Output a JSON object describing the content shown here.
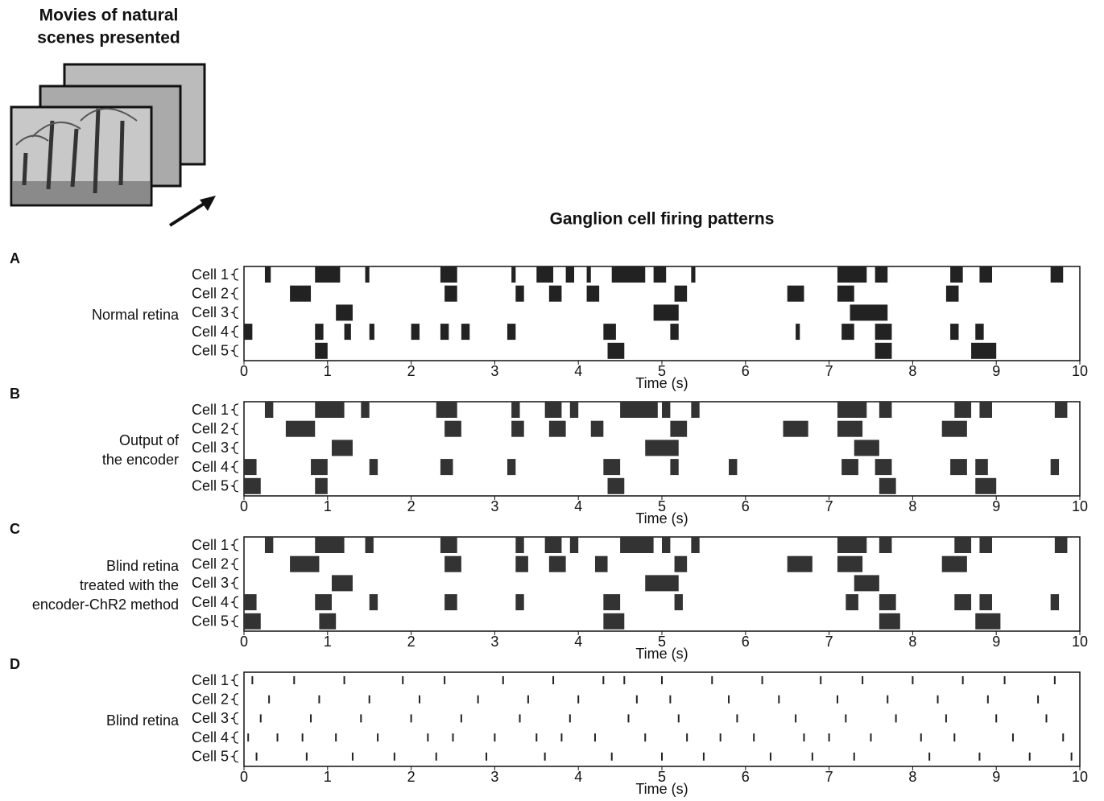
{
  "header": {
    "title_lines": [
      "Movies of natural",
      "scenes presented"
    ],
    "heading": "Ganglion cell firing patterns"
  },
  "chart_data": [
    {
      "type": "raster",
      "panel": "A",
      "label": [
        "Normal retina"
      ],
      "xlabel": "Time (s)",
      "xlim": [
        0,
        10
      ],
      "xticks": [
        0,
        1,
        2,
        3,
        4,
        5,
        6,
        7,
        8,
        9,
        10
      ],
      "color": "#222",
      "series": [
        {
          "name": "Cell 1",
          "bursts": [
            [
              0.25,
              0.32
            ],
            [
              0.85,
              1.15
            ],
            [
              1.45,
              1.5
            ],
            [
              2.35,
              2.55
            ],
            [
              3.2,
              3.25
            ],
            [
              3.5,
              3.7
            ],
            [
              3.85,
              3.95
            ],
            [
              4.1,
              4.15
            ],
            [
              4.4,
              4.8
            ],
            [
              4.9,
              5.05
            ],
            [
              5.35,
              5.4
            ],
            [
              7.1,
              7.45
            ],
            [
              7.55,
              7.7
            ],
            [
              8.45,
              8.6
            ],
            [
              8.8,
              8.95
            ],
            [
              9.65,
              9.8
            ]
          ]
        },
        {
          "name": "Cell 2",
          "bursts": [
            [
              0.55,
              0.8
            ],
            [
              2.4,
              2.55
            ],
            [
              3.25,
              3.35
            ],
            [
              3.65,
              3.8
            ],
            [
              4.1,
              4.25
            ],
            [
              5.15,
              5.3
            ],
            [
              6.5,
              6.7
            ],
            [
              7.1,
              7.3
            ],
            [
              8.4,
              8.55
            ]
          ]
        },
        {
          "name": "Cell 3",
          "bursts": [
            [
              1.1,
              1.3
            ],
            [
              4.9,
              5.2
            ],
            [
              7.25,
              7.7
            ]
          ]
        },
        {
          "name": "Cell 4",
          "bursts": [
            [
              0,
              0.1
            ],
            [
              0.85,
              0.95
            ],
            [
              1.2,
              1.28
            ],
            [
              1.5,
              1.56
            ],
            [
              2.0,
              2.1
            ],
            [
              2.35,
              2.45
            ],
            [
              2.6,
              2.7
            ],
            [
              3.15,
              3.25
            ],
            [
              4.3,
              4.45
            ],
            [
              5.1,
              5.2
            ],
            [
              6.6,
              6.65
            ],
            [
              7.15,
              7.3
            ],
            [
              7.55,
              7.75
            ],
            [
              8.45,
              8.55
            ],
            [
              8.75,
              8.85
            ]
          ]
        },
        {
          "name": "Cell 5",
          "bursts": [
            [
              0.85,
              1.0
            ],
            [
              4.35,
              4.55
            ],
            [
              7.55,
              7.75
            ],
            [
              8.7,
              9.0
            ]
          ]
        }
      ]
    },
    {
      "type": "raster",
      "panel": "B",
      "label": [
        "Output of",
        "the encoder"
      ],
      "xlabel": "Time (s)",
      "xlim": [
        0,
        10
      ],
      "xticks": [
        0,
        1,
        2,
        3,
        4,
        5,
        6,
        7,
        8,
        9,
        10
      ],
      "color": "#333",
      "series": [
        {
          "name": "Cell 1",
          "bursts": [
            [
              0.25,
              0.35
            ],
            [
              0.85,
              1.2
            ],
            [
              1.4,
              1.5
            ],
            [
              2.3,
              2.55
            ],
            [
              3.2,
              3.3
            ],
            [
              3.6,
              3.8
            ],
            [
              3.9,
              4.0
            ],
            [
              4.5,
              4.95
            ],
            [
              5.0,
              5.1
            ],
            [
              5.35,
              5.45
            ],
            [
              7.1,
              7.45
            ],
            [
              7.6,
              7.75
            ],
            [
              8.5,
              8.7
            ],
            [
              8.8,
              8.95
            ],
            [
              9.7,
              9.85
            ]
          ]
        },
        {
          "name": "Cell 2",
          "bursts": [
            [
              0.5,
              0.85
            ],
            [
              2.4,
              2.6
            ],
            [
              3.2,
              3.35
            ],
            [
              3.65,
              3.85
            ],
            [
              4.15,
              4.3
            ],
            [
              5.1,
              5.3
            ],
            [
              6.45,
              6.75
            ],
            [
              7.1,
              7.4
            ],
            [
              8.35,
              8.65
            ]
          ]
        },
        {
          "name": "Cell 3",
          "bursts": [
            [
              1.05,
              1.3
            ],
            [
              4.8,
              5.2
            ],
            [
              7.3,
              7.6
            ]
          ]
        },
        {
          "name": "Cell 4",
          "bursts": [
            [
              0,
              0.15
            ],
            [
              0.8,
              1.0
            ],
            [
              1.5,
              1.6
            ],
            [
              2.35,
              2.5
            ],
            [
              3.15,
              3.25
            ],
            [
              4.3,
              4.5
            ],
            [
              5.1,
              5.2
            ],
            [
              5.8,
              5.9
            ],
            [
              7.15,
              7.35
            ],
            [
              7.55,
              7.75
            ],
            [
              8.45,
              8.65
            ],
            [
              8.75,
              8.9
            ],
            [
              9.65,
              9.75
            ]
          ]
        },
        {
          "name": "Cell 5",
          "bursts": [
            [
              0,
              0.2
            ],
            [
              0.85,
              1.0
            ],
            [
              4.35,
              4.55
            ],
            [
              7.6,
              7.8
            ],
            [
              8.75,
              9.0
            ]
          ]
        }
      ]
    },
    {
      "type": "raster",
      "panel": "C",
      "label": [
        "Blind retina",
        "treated with the",
        "encoder-ChR2 method"
      ],
      "xlabel": "Time (s)",
      "xlim": [
        0,
        10
      ],
      "xticks": [
        0,
        1,
        2,
        3,
        4,
        5,
        6,
        7,
        8,
        9,
        10
      ],
      "color": "#333",
      "series": [
        {
          "name": "Cell 1",
          "bursts": [
            [
              0.25,
              0.35
            ],
            [
              0.85,
              1.2
            ],
            [
              1.45,
              1.55
            ],
            [
              2.35,
              2.55
            ],
            [
              3.25,
              3.35
            ],
            [
              3.6,
              3.8
            ],
            [
              3.9,
              4.0
            ],
            [
              4.5,
              4.9
            ],
            [
              5.0,
              5.1
            ],
            [
              5.35,
              5.45
            ],
            [
              7.1,
              7.45
            ],
            [
              7.6,
              7.75
            ],
            [
              8.5,
              8.7
            ],
            [
              8.8,
              8.95
            ],
            [
              9.7,
              9.85
            ]
          ]
        },
        {
          "name": "Cell 2",
          "bursts": [
            [
              0.55,
              0.9
            ],
            [
              2.4,
              2.6
            ],
            [
              3.25,
              3.4
            ],
            [
              3.65,
              3.85
            ],
            [
              4.2,
              4.35
            ],
            [
              5.15,
              5.3
            ],
            [
              6.5,
              6.8
            ],
            [
              7.1,
              7.4
            ],
            [
              8.35,
              8.65
            ]
          ]
        },
        {
          "name": "Cell 3",
          "bursts": [
            [
              1.05,
              1.3
            ],
            [
              4.8,
              5.2
            ],
            [
              7.3,
              7.6
            ]
          ]
        },
        {
          "name": "Cell 4",
          "bursts": [
            [
              0,
              0.15
            ],
            [
              0.85,
              1.05
            ],
            [
              1.5,
              1.6
            ],
            [
              2.4,
              2.55
            ],
            [
              3.25,
              3.35
            ],
            [
              4.3,
              4.5
            ],
            [
              5.15,
              5.25
            ],
            [
              7.2,
              7.35
            ],
            [
              7.6,
              7.8
            ],
            [
              8.5,
              8.7
            ],
            [
              8.8,
              8.95
            ],
            [
              9.65,
              9.75
            ]
          ]
        },
        {
          "name": "Cell 5",
          "bursts": [
            [
              0,
              0.2
            ],
            [
              0.9,
              1.1
            ],
            [
              4.3,
              4.55
            ],
            [
              7.6,
              7.85
            ],
            [
              8.75,
              9.05
            ]
          ]
        }
      ]
    },
    {
      "type": "spikes",
      "panel": "D",
      "label": [
        "Blind retina"
      ],
      "xlabel": "Time (s)",
      "xlim": [
        0,
        10
      ],
      "xticks": [
        0,
        1,
        2,
        3,
        4,
        5,
        6,
        7,
        8,
        9,
        10
      ],
      "color": "#222",
      "series": [
        {
          "name": "Cell 1",
          "spikes": [
            0.1,
            0.6,
            1.2,
            1.9,
            2.4,
            3.1,
            3.7,
            4.3,
            4.55,
            5.0,
            5.6,
            6.2,
            6.9,
            7.4,
            8.0,
            8.6,
            9.1,
            9.7
          ]
        },
        {
          "name": "Cell 2",
          "spikes": [
            0.3,
            0.9,
            1.5,
            2.1,
            2.8,
            3.4,
            4.0,
            4.7,
            5.1,
            5.8,
            6.4,
            7.1,
            7.7,
            8.3,
            8.9,
            9.5
          ]
        },
        {
          "name": "Cell 3",
          "spikes": [
            0.2,
            0.8,
            1.4,
            2.0,
            2.6,
            3.3,
            3.9,
            4.6,
            5.2,
            5.9,
            6.6,
            7.2,
            7.8,
            8.4,
            9.0,
            9.6
          ]
        },
        {
          "name": "Cell 4",
          "spikes": [
            0.05,
            0.4,
            0.7,
            1.1,
            1.6,
            2.2,
            2.5,
            3.0,
            3.5,
            3.8,
            4.2,
            4.8,
            5.3,
            5.7,
            6.1,
            6.7,
            7.0,
            7.5,
            8.1,
            8.5,
            9.2,
            9.8
          ]
        },
        {
          "name": "Cell 5",
          "spikes": [
            0.15,
            0.75,
            1.3,
            1.8,
            2.3,
            2.9,
            3.6,
            4.4,
            5.0,
            5.5,
            6.3,
            6.8,
            7.3,
            8.2,
            8.8,
            9.4,
            9.9
          ]
        }
      ]
    }
  ]
}
